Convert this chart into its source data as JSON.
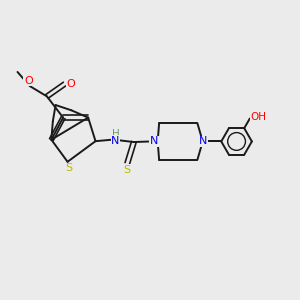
{
  "bg_color": "#ebebeb",
  "bond_color": "#1a1a1a",
  "atom_colors": {
    "O": "#ff0000",
    "S": "#b8b800",
    "N": "#0000ee",
    "H": "#6a9a6a",
    "default": "#1a1a1a"
  },
  "figsize": [
    3.0,
    3.0
  ],
  "dpi": 100
}
